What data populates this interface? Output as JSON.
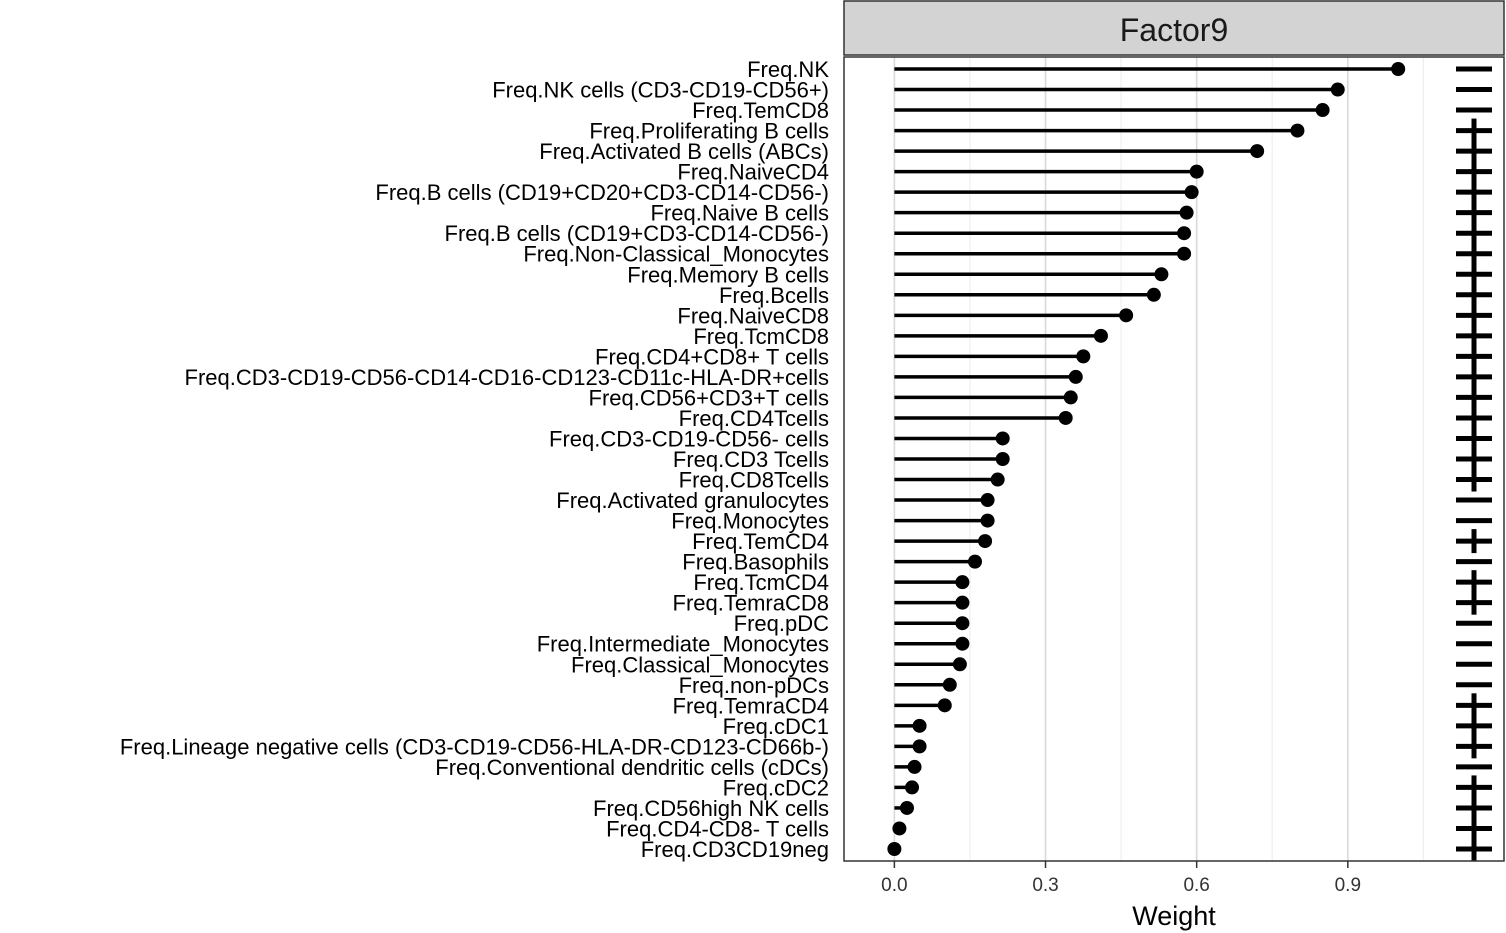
{
  "chart_data": {
    "type": "lollipop",
    "facet_title": "Factor9",
    "xlabel": "Weight",
    "ylabel": "",
    "xlim": [
      -0.1,
      1.21
    ],
    "x_ticks": [
      0.0,
      0.3,
      0.6,
      0.9
    ],
    "x_tick_labels": [
      "0.0",
      "0.3",
      "0.6",
      "0.9"
    ],
    "grid": true,
    "categories": [
      "Freq.NK",
      "Freq.NK cells (CD3-CD19-CD56+)",
      "Freq.TemCD8",
      "Freq.Proliferating B cells",
      "Freq.Activated B cells (ABCs)",
      "Freq.NaiveCD4",
      "Freq.B cells (CD19+CD20+CD3-CD14-CD56-)",
      "Freq.Naive B cells",
      "Freq.B cells (CD19+CD3-CD14-CD56-)",
      "Freq.Non-Classical_Monocytes",
      "Freq.Memory B cells",
      "Freq.Bcells",
      "Freq.NaiveCD8",
      "Freq.TcmCD8",
      "Freq.CD4+CD8+ T cells",
      "Freq.CD3-CD19-CD56-CD14-CD16-CD123-CD11c-HLA-DR+cells",
      "Freq.CD56+CD3+T cells",
      "Freq.CD4Tcells",
      "Freq.CD3-CD19-CD56- cells",
      "Freq.CD3 Tcells",
      "Freq.CD8Tcells",
      "Freq.Activated granulocytes",
      "Freq.Monocytes",
      "Freq.TemCD4",
      "Freq.Basophils",
      "Freq.TcmCD4",
      "Freq.TemraCD8",
      "Freq.pDC",
      "Freq.Intermediate_Monocytes",
      "Freq.Classical_Monocytes",
      "Freq.non-pDCs",
      "Freq.TemraCD4",
      "Freq.cDC1",
      "Freq.Lineage negative cells (CD3-CD19-CD56-HLA-DR-CD123-CD66b-)",
      "Freq.Conventional dendritic cells (cDCs)",
      "Freq.cDC2",
      "Freq.CD56high NK cells",
      "Freq.CD4-CD8- T cells",
      "Freq.CD3CD19neg"
    ],
    "values": [
      1.0,
      0.88,
      0.85,
      0.8,
      0.72,
      0.6,
      0.59,
      0.58,
      0.575,
      0.575,
      0.53,
      0.515,
      0.46,
      0.41,
      0.375,
      0.36,
      0.35,
      0.34,
      0.215,
      0.215,
      0.205,
      0.185,
      0.185,
      0.18,
      0.16,
      0.135,
      0.135,
      0.135,
      0.135,
      0.13,
      0.11,
      0.1,
      0.05,
      0.05,
      0.04,
      0.035,
      0.025,
      0.01,
      0.0
    ],
    "sign_markers": [
      "-",
      "-",
      "-",
      "+",
      "+",
      "+",
      "+",
      "+",
      "+",
      "+",
      "+",
      "+",
      "+",
      "+",
      "+",
      "+",
      "+",
      "+",
      "+",
      "+",
      "+",
      "-",
      "-",
      "+",
      "-",
      "+",
      "+",
      "-",
      "-",
      "-",
      "-",
      "+",
      "+",
      "+",
      "-",
      "+",
      "+",
      "+",
      "+"
    ],
    "colors": {
      "panel_border": "#333333",
      "grid_major": "#d9d9d9",
      "grid_minor": "#efefef",
      "strip_fill": "#d3d3d3",
      "marks": "#000000"
    }
  }
}
